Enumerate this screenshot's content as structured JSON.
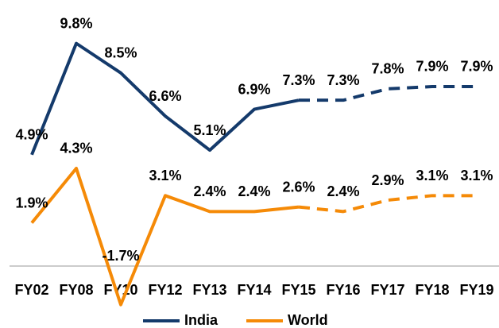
{
  "chart_data": {
    "type": "line",
    "categories": [
      "FY02",
      "FY08",
      "FY10",
      "FY12",
      "FY13",
      "FY14",
      "FY15",
      "FY16",
      "FY17",
      "FY18",
      "FY19"
    ],
    "series": [
      {
        "name": "India",
        "color": "#143a6b",
        "values": [
          4.9,
          9.8,
          8.5,
          6.6,
          5.1,
          6.9,
          7.3,
          7.3,
          7.8,
          7.9,
          7.9
        ],
        "value_labels": [
          "4.9%",
          "9.8%",
          "8.5%",
          "6.6%",
          "5.1%",
          "6.9%",
          "7.3%",
          "7.3%",
          "7.8%",
          "7.9%",
          "7.9%"
        ]
      },
      {
        "name": "World",
        "color": "#f58a07",
        "values": [
          1.9,
          4.3,
          -1.7,
          3.1,
          2.4,
          2.4,
          2.6,
          2.4,
          2.9,
          3.1,
          3.1
        ],
        "value_labels": [
          "1.9%",
          "4.3%",
          "-1.7%",
          "3.1%",
          "2.4%",
          "2.4%",
          "2.6%",
          "2.4%",
          "2.9%",
          "3.1%",
          "3.1%"
        ]
      }
    ],
    "ylim": [
      0,
      11.5
    ],
    "dash_start": "FY15",
    "legend": "bottom"
  }
}
